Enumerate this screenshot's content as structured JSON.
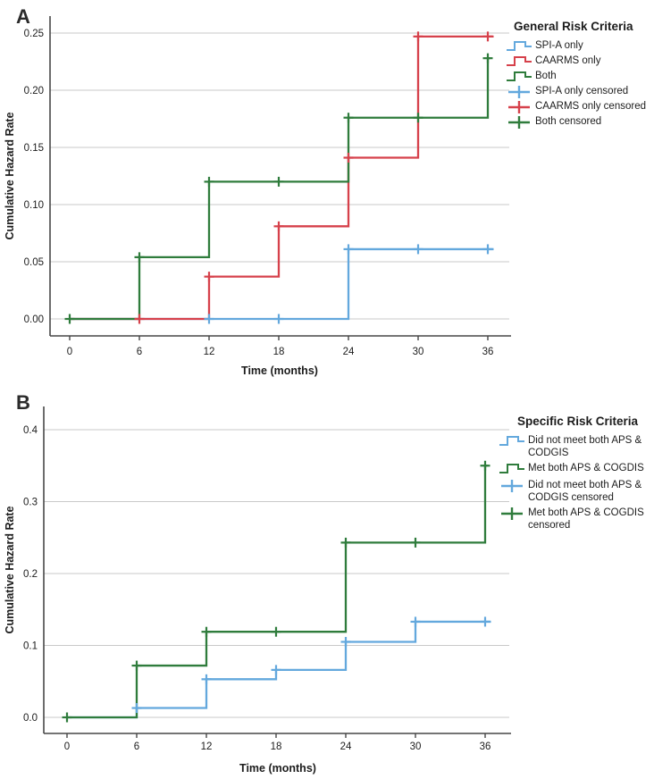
{
  "figure": {
    "panels": [
      "A",
      "B"
    ]
  },
  "chart_data": [
    {
      "type": "line",
      "subtype": "step-cumulative-hazard",
      "panel_label": "A",
      "xlabel": "Time (months)",
      "ylabel": "Cumulative Hazard Rate",
      "xticks": [
        0,
        6,
        12,
        18,
        24,
        30,
        36
      ],
      "ytick_values": [
        0,
        0.05,
        0.1,
        0.15,
        0.2,
        0.25
      ],
      "ytick_labels": [
        "0.00",
        "0.05",
        "0.10",
        "0.15",
        "0.20",
        "0.25"
      ],
      "xlim": [
        0,
        37
      ],
      "ylim": [
        0,
        0.26
      ],
      "grid": "horizontal",
      "legend_title": "General Risk Criteria",
      "legend_position": "right-top",
      "series": [
        {
          "name": "SPI-A only",
          "color": "#63A8DD",
          "steps": [
            [
              0,
              0
            ],
            [
              24,
              0.061
            ]
          ],
          "end": 36.5,
          "censored": [
            [
              12,
              0
            ],
            [
              18,
              0
            ],
            [
              24,
              0.061
            ],
            [
              30,
              0.061
            ],
            [
              36,
              0.061
            ]
          ]
        },
        {
          "name": "CAARMS only",
          "color": "#D6414B",
          "steps": [
            [
              0,
              0
            ],
            [
              12,
              0.037
            ],
            [
              18,
              0.081
            ],
            [
              24,
              0.141
            ],
            [
              30,
              0.247
            ]
          ],
          "end": 36.5,
          "censored": [
            [
              6,
              0
            ],
            [
              12,
              0.037
            ],
            [
              18,
              0.081
            ],
            [
              24,
              0.141
            ],
            [
              30,
              0.247
            ],
            [
              36,
              0.247
            ]
          ]
        },
        {
          "name": "Both",
          "color": "#2F7C3C",
          "steps": [
            [
              0,
              0
            ],
            [
              6,
              0.054
            ],
            [
              12,
              0.12
            ],
            [
              24,
              0.176
            ],
            [
              36,
              0.228
            ]
          ],
          "end": 36.2,
          "censored": [
            [
              0,
              0
            ],
            [
              6,
              0.054
            ],
            [
              12,
              0.12
            ],
            [
              18,
              0.12
            ],
            [
              24,
              0.176
            ],
            [
              30,
              0.176
            ],
            [
              36,
              0.228
            ]
          ]
        }
      ],
      "legend_items": [
        {
          "label": "SPI-A only",
          "glyph": "step",
          "color": "#63A8DD"
        },
        {
          "label": "CAARMS only",
          "glyph": "step",
          "color": "#D6414B"
        },
        {
          "label": "Both",
          "glyph": "step",
          "color": "#2F7C3C"
        },
        {
          "label": "SPI-A only censored",
          "glyph": "plus",
          "color": "#63A8DD"
        },
        {
          "label": "CAARMS only censored",
          "glyph": "plus",
          "color": "#D6414B"
        },
        {
          "label": "Both censored",
          "glyph": "plus",
          "color": "#2F7C3C"
        }
      ]
    },
    {
      "type": "line",
      "subtype": "step-cumulative-hazard",
      "panel_label": "B",
      "xlabel": "Time (months)",
      "ylabel": "Cumulative Hazard Rate",
      "xticks": [
        0,
        6,
        12,
        18,
        24,
        30,
        36
      ],
      "ytick_values": [
        0,
        0.1,
        0.2,
        0.3,
        0.4
      ],
      "ytick_labels": [
        "0.0",
        "0.1",
        "0.2",
        "0.3",
        "0.4"
      ],
      "xlim": [
        0,
        37
      ],
      "ylim": [
        0,
        0.42
      ],
      "grid": "horizontal",
      "legend_title": "Specific Risk Criteria",
      "legend_position": "right-top",
      "series": [
        {
          "name": "Did not meet both APS & CODGIS",
          "color": "#63A8DD",
          "steps": [
            [
              0,
              0
            ],
            [
              6,
              0.013
            ],
            [
              12,
              0.053
            ],
            [
              18,
              0.066
            ],
            [
              24,
              0.105
            ],
            [
              30,
              0.133
            ]
          ],
          "end": 36.5,
          "censored": [
            [
              6,
              0.013
            ],
            [
              12,
              0.053
            ],
            [
              18,
              0.066
            ],
            [
              24,
              0.105
            ],
            [
              30,
              0.133
            ],
            [
              36,
              0.133
            ]
          ]
        },
        {
          "name": "Met both APS & COGDIS",
          "color": "#2F7C3C",
          "steps": [
            [
              0,
              0
            ],
            [
              6,
              0.072
            ],
            [
              12,
              0.119
            ],
            [
              24,
              0.243
            ],
            [
              36,
              0.35
            ]
          ],
          "end": 36.2,
          "censored": [
            [
              0,
              0
            ],
            [
              6,
              0.072
            ],
            [
              12,
              0.119
            ],
            [
              18,
              0.119
            ],
            [
              24,
              0.243
            ],
            [
              30,
              0.243
            ],
            [
              36,
              0.35
            ]
          ]
        }
      ],
      "legend_items": [
        {
          "label": "Did not meet both APS & CODGIS",
          "glyph": "step",
          "color": "#63A8DD"
        },
        {
          "label": "Met both APS & COGDIS",
          "glyph": "step",
          "color": "#2F7C3C"
        },
        {
          "label": "Did not meet both APS & CODGIS censored",
          "glyph": "plus",
          "color": "#63A8DD"
        },
        {
          "label": "Met both APS & COGDIS censored",
          "glyph": "plus",
          "color": "#2F7C3C"
        }
      ]
    }
  ],
  "colors": {
    "grid": "#c9c9c9",
    "axis": "#474747",
    "text": "#1c1c1c"
  }
}
